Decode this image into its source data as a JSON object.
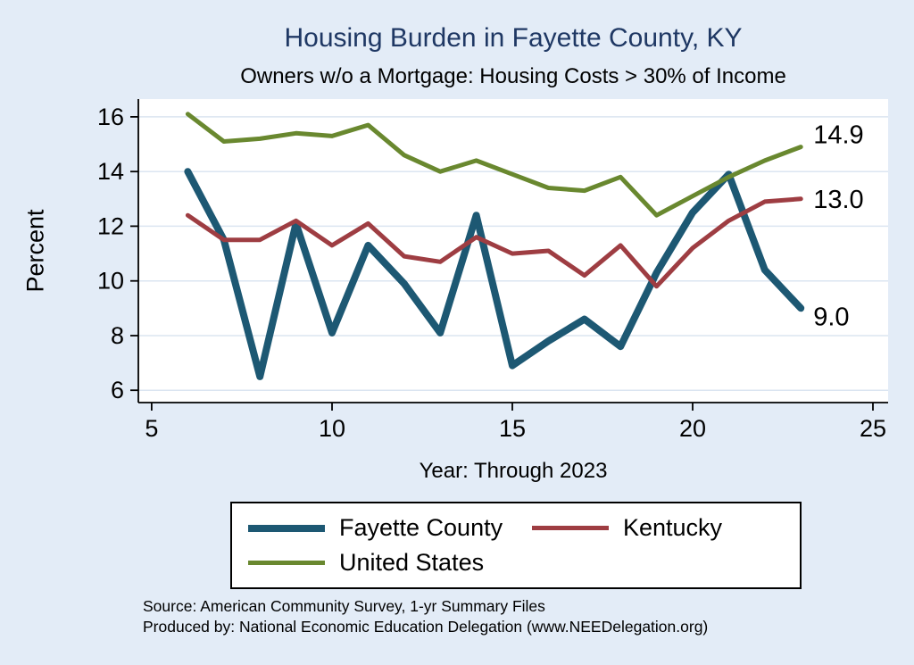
{
  "title": "Housing Burden in Fayette County, KY",
  "subtitle": "Owners w/o a Mortgage: Housing Costs > 30% of Income",
  "x_axis_title": "Year: Through 2023",
  "y_axis_title": "Percent",
  "notes": {
    "source": "Source: American Community Survey, 1-yr Summary Files",
    "produced_by": "Produced by: National Economic Education Delegation (www.NEEDelegation.org)"
  },
  "colors": {
    "background": "#e3ecf7",
    "title": "#1f3864",
    "grid": "#dbe5f1",
    "axis": "#000000",
    "plot_background": "#ffffff"
  },
  "chart_data": {
    "type": "line",
    "title": "Housing Burden in Fayette County, KY",
    "subtitle": "Owners w/o a Mortgage: Housing Costs > 30% of Income",
    "xlabel": "Year: Through 2023",
    "ylabel": "Percent",
    "x": [
      6,
      7,
      8,
      9,
      10,
      11,
      12,
      13,
      14,
      15,
      16,
      17,
      18,
      19,
      20,
      21,
      22,
      23
    ],
    "series": [
      {
        "name": "Fayette County",
        "color": "#1d5873",
        "width": 8,
        "values": [
          14.0,
          11.5,
          6.5,
          12.1,
          8.1,
          11.3,
          9.9,
          8.1,
          12.4,
          6.9,
          7.8,
          8.6,
          7.6,
          10.3,
          12.5,
          13.9,
          10.4,
          9.0
        ],
        "end_label": "9.0",
        "label_dy": 9
      },
      {
        "name": "Kentucky",
        "color": "#9e3d42",
        "width": 5,
        "values": [
          12.4,
          11.5,
          11.5,
          12.2,
          11.3,
          12.1,
          10.9,
          10.7,
          11.6,
          11.0,
          11.1,
          10.2,
          11.3,
          9.8,
          11.2,
          12.2,
          12.9,
          13.0
        ],
        "end_label": "13.0",
        "label_dy": 0
      },
      {
        "name": "United States",
        "color": "#69882f",
        "width": 5,
        "values": [
          16.1,
          15.1,
          15.2,
          15.4,
          15.3,
          15.7,
          14.6,
          14.0,
          14.4,
          13.9,
          13.4,
          13.3,
          13.8,
          12.4,
          13.1,
          13.8,
          14.4,
          14.9
        ],
        "end_label": "14.9",
        "label_dy": -14
      }
    ],
    "xticks": [
      5,
      10,
      15,
      20,
      25
    ],
    "yticks": [
      6,
      8,
      10,
      12,
      14,
      16
    ],
    "xlim": [
      4.63,
      25.42
    ],
    "ylim": [
      5.55,
      16.65
    ],
    "grid": "horizontal",
    "legend_position": "bottom"
  },
  "legend": {
    "entries": [
      "Fayette County",
      "Kentucky",
      "United States"
    ]
  }
}
